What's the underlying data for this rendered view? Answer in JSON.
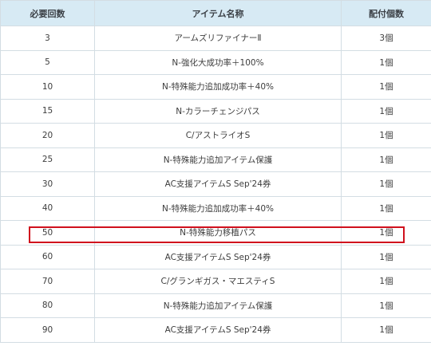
{
  "table": {
    "headers": {
      "count": "必要回数",
      "item": "アイテム名称",
      "qty": "配付個数"
    },
    "rows": [
      {
        "count": "3",
        "item": "アームズリファイナーⅡ",
        "qty": "3個"
      },
      {
        "count": "5",
        "item": "N-強化大成功率＋100%",
        "qty": "1個"
      },
      {
        "count": "10",
        "item": "N-特殊能力追加成功率＋40%",
        "qty": "1個"
      },
      {
        "count": "15",
        "item": "N-カラーチェンジパス",
        "qty": "1個"
      },
      {
        "count": "20",
        "item": "C/アストライオS",
        "qty": "1個"
      },
      {
        "count": "25",
        "item": "N-特殊能力追加アイテム保護",
        "qty": "1個"
      },
      {
        "count": "30",
        "item": "AC支援アイテムS Sep'24券",
        "qty": "1個"
      },
      {
        "count": "40",
        "item": "N-特殊能力追加成功率＋40%",
        "qty": "1個"
      },
      {
        "count": "50",
        "item": "N-特殊能力移植パス",
        "qty": "1個"
      },
      {
        "count": "60",
        "item": "AC支援アイテムS Sep'24券",
        "qty": "1個"
      },
      {
        "count": "70",
        "item": "C/グランギガス・マエスティS",
        "qty": "1個"
      },
      {
        "count": "80",
        "item": "N-特殊能力追加アイテム保護",
        "qty": "1個"
      },
      {
        "count": "90",
        "item": "AC支援アイテムS Sep'24券",
        "qty": "1個"
      }
    ],
    "highlighted_row_count": "50"
  },
  "colors": {
    "header_bg": "#d7eaf4",
    "border": "#d3dde3",
    "highlight": "#d0101d"
  }
}
